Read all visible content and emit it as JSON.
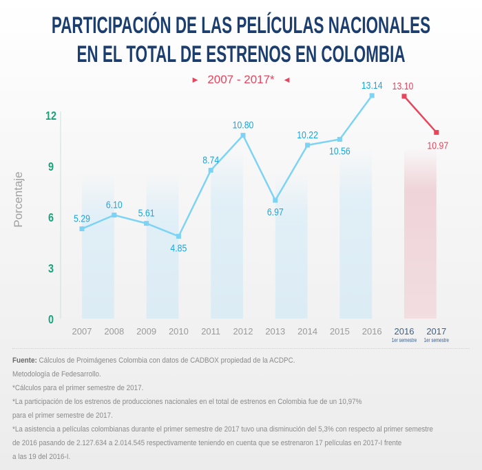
{
  "title_line1": "PARTICIPACIÓN DE LAS PELÍCULAS NACIONALES",
  "title_line2": "EN EL TOTAL DE ESTRENOS EN COLOMBIA",
  "subtitle": "2007 - 2017*",
  "chart_data": {
    "type": "line",
    "ylabel": "Porcentaje",
    "ylim": [
      0,
      12
    ],
    "yticks": [
      "0",
      "3",
      "6",
      "9",
      "12"
    ],
    "colors": {
      "annual": "#7dd3f5",
      "annual_label": "#1aa7e0",
      "semester": "#e8445c",
      "ytick": "#1aa37a"
    },
    "series": [
      {
        "categories": [
          "2007",
          "2008",
          "2009",
          "2010",
          "2011",
          "2012",
          "2013",
          "2014",
          "2015",
          "2016"
        ],
        "values": [
          5.29,
          6.1,
          5.61,
          4.85,
          8.74,
          10.8,
          6.97,
          10.22,
          10.56,
          13.14
        ],
        "labels": [
          "5.29",
          "6.10",
          "5.61",
          "4.85",
          "8.74",
          "10.80",
          "6.97",
          "10.22",
          "10.56",
          "13.14"
        ]
      },
      {
        "categories": [
          "2016",
          "2017"
        ],
        "sublabel": "1er semestre",
        "values": [
          13.1,
          10.97
        ],
        "labels": [
          "13.10",
          "10.97"
        ]
      }
    ]
  },
  "notes": {
    "source_label": "Fuente:",
    "source_text": " Cálculos de Proimágenes Colombia con datos de CADBOX propiedad de la ACDPC.",
    "lines": [
      "Metodología de Fedesarrollo.",
      "*Cálculos para el primer semestre de 2017.",
      "*La participación de los estrenos de producciones nacionales en el total de estrenos en Colombia fue de un 10,97%",
      "para el primer semestre de 2017.",
      "*La asistencia a películas colombianas durante el primer semestre de 2017 tuvo una disminución del 5,3% con respecto al primer semestre",
      "de 2016 pasando de 2.127.634 a 2.014.545 respectivamente teniendo en cuenta que se estrenaron 17 películas en 2017-I frente",
      "a las 19 del 2016-I."
    ]
  }
}
